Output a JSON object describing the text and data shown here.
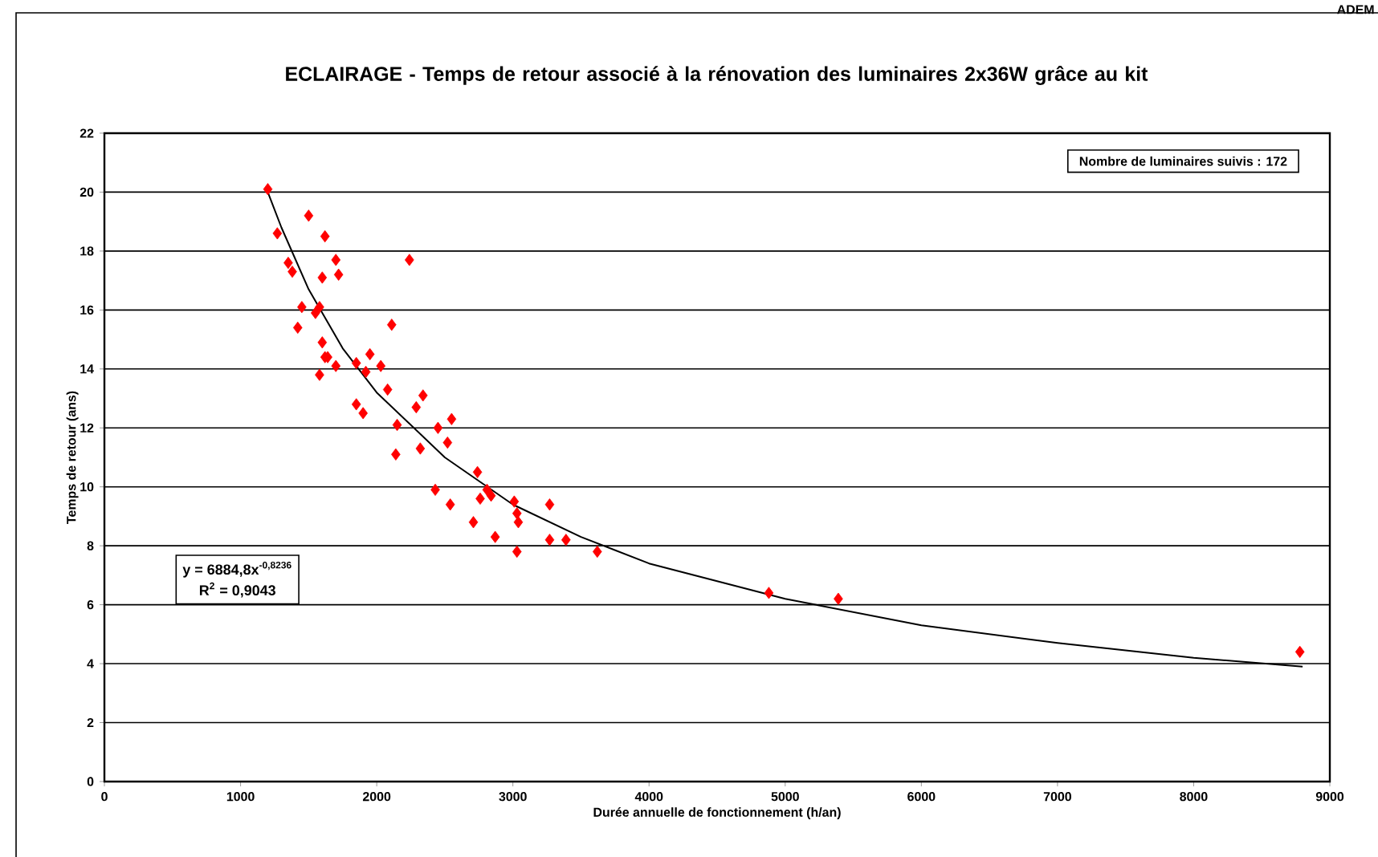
{
  "chart_data": {
    "type": "scatter",
    "title": "ECLAIRAGE - Temps de retour associé à la rénovation des luminaires 2x36W grâce au kit",
    "xlabel": "Durée annuelle de fonctionnement (h/an)",
    "ylabel": "Temps de retour (ans)",
    "annotations": [
      "Nombre de luminaires suivis : 172",
      "y = 6884,8x$^{-0,8236}$",
      "R$^{2}$ = 0,9043",
      "ADEM"
    ],
    "xlim": [
      0,
      9000
    ],
    "xticks": [
      0,
      1000,
      2000,
      3000,
      4000,
      5000,
      6000,
      7000,
      8000,
      9000
    ],
    "ylim": [
      0,
      22
    ],
    "yticks": [
      0,
      2,
      4,
      6,
      8,
      10,
      12,
      14,
      16,
      18,
      20,
      22
    ],
    "grid": "y",
    "marker": "diamond",
    "series": [
      {
        "color": "#ff0000",
        "x": [
          1200,
          1270,
          1500,
          1620,
          1700,
          1350,
          1380,
          1600,
          1720,
          2240,
          1450,
          1550,
          1580,
          1420,
          2110,
          1600,
          1620,
          1640,
          1580,
          1700,
          1850,
          1950,
          2030,
          1920,
          2080,
          2340,
          2290,
          1850,
          1900,
          2150,
          2450,
          2550,
          2520,
          2320,
          2140,
          2740,
          2430,
          2810,
          2760,
          2840,
          2540,
          3010,
          3270,
          3030,
          3040,
          2710,
          2870,
          3030,
          3270,
          3390,
          3620,
          4880,
          5390,
          8780
        ],
        "values": [
          20.1,
          18.6,
          19.2,
          18.5,
          17.7,
          17.6,
          17.3,
          17.1,
          17.2,
          17.7,
          16.1,
          15.9,
          16.1,
          15.4,
          15.5,
          14.9,
          14.4,
          14.4,
          13.8,
          14.1,
          14.2,
          14.5,
          14.1,
          13.9,
          13.3,
          13.1,
          12.7,
          12.8,
          12.5,
          12.1,
          12.0,
          12.3,
          11.5,
          11.3,
          11.1,
          10.5,
          9.9,
          9.9,
          9.6,
          9.7,
          9.4,
          9.5,
          9.4,
          9.1,
          8.8,
          8.8,
          8.3,
          7.8,
          8.2,
          8.2,
          7.8,
          6.4,
          6.2,
          4.4
        ]
      },
      {
        "type": "line",
        "marker": "none",
        "color": "#000000",
        "x": [
          1200,
          1300,
          1500,
          1750,
          2000,
          2500,
          3000,
          3500,
          4000,
          5000,
          6000,
          7000,
          8000,
          8800
        ],
        "values": [
          20.0,
          18.8,
          16.7,
          14.7,
          13.2,
          11.0,
          9.4,
          8.3,
          7.4,
          6.2,
          5.3,
          4.7,
          4.2,
          3.9
        ]
      }
    ]
  }
}
